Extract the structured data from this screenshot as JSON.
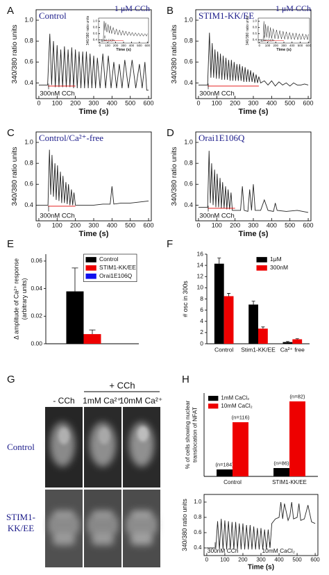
{
  "panel_labels": [
    "A",
    "B",
    "C",
    "D",
    "E",
    "F",
    "G",
    "H"
  ],
  "imaging": {
    "header": "+ CCh",
    "columns": [
      "- CCh",
      "1mM Ca²⁺",
      "10mM Ca²⁺"
    ],
    "rows": [
      [
        "Control"
      ],
      [
        "STIM1-",
        "KK/EE"
      ]
    ]
  },
  "chart_data": [
    {
      "type": "line",
      "title": "Control",
      "ylabel": "340/380 ratio units",
      "xlabel": "Time (s)",
      "annotations": [
        "300nM CCh"
      ],
      "xlim": [
        -15,
        615
      ],
      "ylim": [
        0.25,
        1.1
      ],
      "xticks": [
        0,
        100,
        200,
        300,
        400,
        500,
        600
      ],
      "yticks": [
        0.4,
        0.6,
        0.8,
        {
          "value": 1,
          "label": "1.0"
        }
      ],
      "series": [
        {
          "color": "#222222",
          "x": [
            0,
            48,
            60,
            70,
            80,
            90,
            100,
            110,
            120,
            130,
            140,
            150,
            160,
            170,
            180,
            190,
            200,
            210,
            220,
            230,
            240,
            250,
            260,
            270,
            280,
            290,
            300,
            310,
            320,
            335,
            350,
            365,
            380,
            395,
            410,
            425,
            440,
            455,
            470,
            490,
            510,
            530,
            550,
            565,
            580,
            590,
            600
          ],
          "values": [
            0.38,
            0.38,
            0.87,
            0.38,
            0.8,
            0.36,
            0.76,
            0.36,
            0.72,
            0.36,
            0.75,
            0.36,
            0.72,
            0.36,
            0.74,
            0.35,
            0.72,
            0.35,
            0.7,
            0.35,
            0.7,
            0.35,
            0.7,
            0.35,
            0.68,
            0.35,
            0.66,
            0.35,
            0.64,
            0.35,
            0.68,
            0.35,
            0.66,
            0.35,
            0.6,
            0.35,
            0.58,
            0.35,
            0.62,
            0.35,
            0.62,
            0.35,
            0.58,
            0.35,
            0.6,
            0.33,
            0.33
          ]
        },
        {
          "color": "#e00000",
          "x": [
            50,
            200
          ],
          "values": [
            0.37,
            0.37
          ]
        }
      ]
    },
    {
      "type": "line",
      "inset": true,
      "title": "1 μM CCh",
      "ylabel": "340/380 ratio units",
      "xlabel": "Time (s)",
      "annotations": [
        "1μM CCh"
      ],
      "xlim": [
        -15,
        615
      ],
      "ylim": [
        0.3,
        1.1
      ],
      "xticks": [
        0,
        100,
        200,
        300,
        400,
        500,
        600
      ],
      "yticks": [
        0.4,
        0.6,
        0.8,
        {
          "value": 1,
          "label": "1.0"
        }
      ],
      "series": [
        {
          "color": "#222222",
          "x": [
            0,
            45,
            55,
            65,
            75,
            90,
            105,
            120,
            135,
            150,
            170,
            190,
            210,
            230,
            250,
            270,
            290,
            310,
            330,
            350,
            370,
            390,
            410,
            430,
            450,
            470,
            490,
            510,
            530,
            550,
            570,
            590,
            600
          ],
          "values": [
            0.4,
            0.4,
            1.0,
            0.7,
            0.95,
            0.65,
            0.9,
            0.62,
            0.85,
            0.6,
            0.8,
            0.58,
            0.75,
            0.56,
            0.72,
            0.55,
            0.7,
            0.55,
            0.68,
            0.54,
            0.66,
            0.54,
            0.64,
            0.53,
            0.63,
            0.53,
            0.62,
            0.52,
            0.61,
            0.52,
            0.6,
            0.52,
            0.6
          ]
        },
        {
          "color": "#e00000",
          "x": [
            50,
            300
          ],
          "values": [
            0.38,
            0.38
          ]
        }
      ]
    },
    {
      "type": "line",
      "title": "STIM1-KK/EE",
      "ylabel": "340/380 ratio units",
      "xlabel": "Time (s)",
      "annotations": [
        "300nM CCh"
      ],
      "xlim": [
        -15,
        615
      ],
      "ylim": [
        0.25,
        1.1
      ],
      "xticks": [
        0,
        100,
        200,
        300,
        400,
        500,
        600
      ],
      "yticks": [
        0.4,
        0.6,
        0.8,
        {
          "value": 1,
          "label": "1.0"
        }
      ],
      "series": [
        {
          "color": "#222222",
          "x": [
            0,
            50,
            60,
            68,
            75,
            83,
            90,
            98,
            105,
            113,
            120,
            128,
            135,
            143,
            150,
            158,
            165,
            173,
            180,
            188,
            195,
            203,
            210,
            218,
            225,
            233,
            240,
            248,
            255,
            263,
            270,
            278,
            285,
            293,
            300,
            308,
            315,
            323,
            330,
            340,
            360,
            380,
            400,
            420,
            440,
            460,
            480,
            500,
            520,
            540,
            560,
            580,
            600
          ],
          "values": [
            0.38,
            0.38,
            0.88,
            0.45,
            0.78,
            0.45,
            0.72,
            0.44,
            0.7,
            0.44,
            0.68,
            0.43,
            0.66,
            0.43,
            0.64,
            0.43,
            0.62,
            0.42,
            0.62,
            0.42,
            0.6,
            0.42,
            0.58,
            0.42,
            0.58,
            0.42,
            0.56,
            0.41,
            0.55,
            0.41,
            0.53,
            0.41,
            0.52,
            0.41,
            0.5,
            0.4,
            0.48,
            0.4,
            0.46,
            0.4,
            0.42,
            0.38,
            0.42,
            0.37,
            0.41,
            0.38,
            0.4,
            0.37,
            0.4,
            0.38,
            0.38,
            0.39,
            0.38
          ]
        },
        {
          "color": "#e00000",
          "x": [
            50,
            330
          ],
          "values": [
            0.37,
            0.37
          ]
        }
      ]
    },
    {
      "type": "line",
      "inset": true,
      "title": "1 μM CCh",
      "ylabel": "340/380 ratio units",
      "xlabel": "Time (s)",
      "annotations": [
        "1μM CCh"
      ],
      "xlim": [
        -15,
        615
      ],
      "ylim": [
        0.3,
        1.1
      ],
      "xticks": [
        0,
        100,
        200,
        300,
        400,
        500,
        600
      ],
      "yticks": [
        0.4,
        0.6,
        0.8,
        {
          "value": 1,
          "label": "1.0"
        }
      ],
      "series": [
        {
          "color": "#222222",
          "x": [
            0,
            45,
            55,
            65,
            75,
            90,
            105,
            120,
            135,
            150,
            170,
            190,
            210,
            230,
            250,
            270,
            290,
            310,
            330,
            350,
            370,
            390,
            410,
            430,
            450,
            470,
            490,
            510,
            530,
            550,
            570,
            590,
            600
          ],
          "values": [
            0.4,
            0.4,
            1.0,
            0.5,
            0.9,
            0.48,
            0.85,
            0.46,
            0.8,
            0.45,
            0.76,
            0.44,
            0.72,
            0.43,
            0.7,
            0.43,
            0.68,
            0.42,
            0.66,
            0.42,
            0.64,
            0.42,
            0.62,
            0.41,
            0.62,
            0.41,
            0.6,
            0.41,
            0.6,
            0.41,
            0.58,
            0.41,
            0.58
          ]
        },
        {
          "color": "#e00000",
          "x": [
            50,
            300
          ],
          "values": [
            0.38,
            0.38
          ]
        }
      ]
    },
    {
      "type": "line",
      "title": "Control/Ca²⁺-free",
      "ylabel": "340/380 ratio units",
      "xlabel": "Time (s)",
      "annotations": [
        "300nM CCh"
      ],
      "xlim": [
        -15,
        615
      ],
      "ylim": [
        0.25,
        1.1
      ],
      "xticks": [
        0,
        100,
        200,
        300,
        400,
        500,
        600
      ],
      "yticks": [
        0.4,
        0.6,
        0.8,
        {
          "value": 1,
          "label": "1.0"
        }
      ],
      "series": [
        {
          "color": "#222222",
          "x": [
            0,
            50,
            58,
            65,
            72,
            80,
            88,
            95,
            102,
            110,
            118,
            125,
            132,
            140,
            148,
            155,
            162,
            170,
            178,
            185,
            192,
            200,
            250,
            300,
            350,
            390,
            400,
            410,
            450,
            500,
            550,
            600
          ],
          "values": [
            0.4,
            0.4,
            0.93,
            0.5,
            0.88,
            0.48,
            0.8,
            0.45,
            0.78,
            0.44,
            0.72,
            0.42,
            0.68,
            0.42,
            0.62,
            0.41,
            0.6,
            0.4,
            0.55,
            0.4,
            0.52,
            0.4,
            0.4,
            0.4,
            0.41,
            0.41,
            0.58,
            0.41,
            0.42,
            0.42,
            0.43,
            0.44
          ]
        },
        {
          "color": "#e00000",
          "x": [
            50,
            200
          ],
          "values": [
            0.39,
            0.39
          ]
        }
      ]
    },
    {
      "type": "line",
      "title": "Orai1E106Q",
      "ylabel": "340/380 ratio units",
      "xlabel": "Time (s)",
      "annotations": [
        "300nM CCh"
      ],
      "xlim": [
        -15,
        615
      ],
      "ylim": [
        0.25,
        1.1
      ],
      "xticks": [
        0,
        100,
        200,
        300,
        400,
        500,
        600
      ],
      "yticks": [
        0.4,
        0.6,
        0.8,
        {
          "value": 1,
          "label": "1.0"
        }
      ],
      "series": [
        {
          "color": "#222222",
          "x": [
            0,
            50,
            58,
            65,
            72,
            80,
            88,
            95,
            102,
            110,
            118,
            125,
            132,
            140,
            148,
            155,
            162,
            170,
            178,
            185,
            200,
            230,
            240,
            250,
            270,
            280,
            290,
            300,
            310,
            340,
            360,
            380,
            410,
            420,
            430,
            480,
            540,
            600
          ],
          "values": [
            0.38,
            0.38,
            0.92,
            0.42,
            0.8,
            0.4,
            0.74,
            0.38,
            0.7,
            0.38,
            0.66,
            0.37,
            0.62,
            0.37,
            0.58,
            0.36,
            0.55,
            0.36,
            0.52,
            0.35,
            0.35,
            0.35,
            0.58,
            0.35,
            0.34,
            0.55,
            0.35,
            0.6,
            0.35,
            0.35,
            0.45,
            0.35,
            0.34,
            0.42,
            0.35,
            0.34,
            0.35,
            0.33
          ]
        },
        {
          "color": "#e00000",
          "x": [
            50,
            200
          ],
          "values": [
            0.37,
            0.37
          ]
        }
      ]
    },
    {
      "type": "bar",
      "ylabel": [
        "Δ amplitude of Ca²⁺ response",
        "(arbitrary units)"
      ],
      "legend": "upper right",
      "categories": [
        null
      ],
      "ylim": [
        0,
        0.065
      ],
      "yticks": [
        {
          "value": 0,
          "label": "0.00"
        },
        {
          "value": 0.02,
          "label": "0.02"
        },
        {
          "value": 0.04,
          "label": "0.04"
        },
        {
          "value": 0.06,
          "label": "0.06"
        }
      ],
      "series": [
        {
          "name": "Control",
          "color": "#000000",
          "values": [
            0.038
          ],
          "errors": [
            0.017
          ]
        },
        {
          "name": "STIM1-KK/EE",
          "color": "#ee0000",
          "values": [
            0.007
          ],
          "errors": [
            0.003
          ]
        },
        {
          "name": "Orai1E106Q",
          "color": "#1010ee",
          "values": [
            0
          ]
        }
      ]
    },
    {
      "type": "bar",
      "ylabel": [
        "# osc in 300s"
      ],
      "legend": "upper right",
      "categories": [
        "Control",
        "Stim1-KK/EE",
        "Ca²⁺ free"
      ],
      "ylim": [
        0,
        16
      ],
      "yticks": [
        0,
        2,
        4,
        6,
        8,
        10,
        12,
        14,
        16
      ],
      "series": [
        {
          "name": "1μM",
          "color": "#000000",
          "values": [
            14.3,
            7,
            0.3
          ],
          "errors": [
            1,
            0.6,
            0.1
          ]
        },
        {
          "name": "300nM",
          "color": "#ee0000",
          "values": [
            8.5,
            2.7,
            0.8
          ],
          "errors": [
            0.5,
            0.3,
            0.1
          ]
        }
      ]
    },
    {
      "type": "bar",
      "ylabel": [
        "% of cells showing nuclear",
        "translocation of NFAT"
      ],
      "legend": "upper left",
      "categories": [
        "Control",
        "STIM1-KK/EE"
      ],
      "ylim": [
        0,
        60
      ],
      "series": [
        {
          "name": "1mM CaCl₂",
          "color": "#000000",
          "values": [
            5,
            6
          ],
          "labels": [
            "(n=184)",
            "(n=86)"
          ]
        },
        {
          "name": "10mM CaCl₂",
          "color": "#ee0000",
          "values": [
            39,
            54
          ],
          "labels": [
            "(n=116)",
            "(n=82)"
          ]
        }
      ]
    },
    {
      "type": "line",
      "ylabel": "340/380 ratio units",
      "xlabel": "Time (s)",
      "annotations": [
        "300nM CCh",
        "10mM CaCl₂"
      ],
      "xlim": [
        -15,
        615
      ],
      "ylim": [
        0.3,
        1.1
      ],
      "xticks": [
        0,
        100,
        200,
        300,
        400,
        500,
        600
      ],
      "yticks": [
        0.4,
        0.6,
        0.8,
        {
          "value": 1,
          "label": "1.0"
        }
      ],
      "series": [
        {
          "color": "#222222",
          "x": [
            0,
            50,
            60,
            70,
            80,
            90,
            100,
            110,
            120,
            130,
            140,
            150,
            160,
            170,
            180,
            190,
            200,
            210,
            220,
            230,
            240,
            250,
            260,
            270,
            280,
            290,
            300,
            310,
            320,
            330,
            340,
            350,
            360,
            370,
            380,
            400,
            410,
            420,
            430,
            450,
            460,
            470,
            480,
            500,
            510,
            520,
            540,
            560,
            580,
            600
          ],
          "values": [
            0.4,
            0.4,
            0.75,
            0.38,
            0.78,
            0.38,
            0.76,
            0.38,
            0.75,
            0.38,
            0.74,
            0.38,
            0.74,
            0.38,
            0.72,
            0.38,
            0.72,
            0.38,
            0.7,
            0.38,
            0.7,
            0.38,
            0.68,
            0.38,
            0.66,
            0.38,
            0.66,
            0.38,
            0.64,
            0.38,
            0.64,
            0.4,
            0.72,
            0.75,
            0.78,
            0.8,
            1.0,
            0.78,
            0.98,
            0.76,
            0.82,
            1.0,
            0.78,
            0.8,
            0.98,
            0.76,
            0.78,
            0.96,
            0.74,
            0.72
          ]
        }
      ]
    }
  ]
}
